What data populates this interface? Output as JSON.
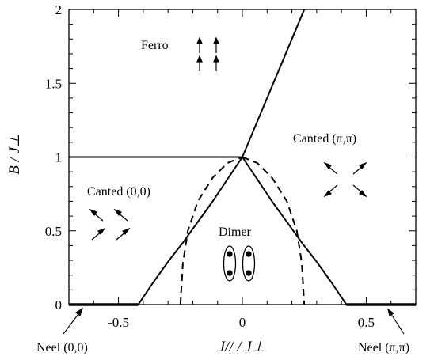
{
  "chart_data": {
    "type": "line",
    "title": "",
    "xlabel": "J// / J⊥",
    "ylabel": "B / J⊥",
    "xlim": [
      -0.7,
      0.7
    ],
    "ylim": [
      0,
      2
    ],
    "x_ticks": [
      "-0.5",
      "0",
      "0.5"
    ],
    "x_tick_values": [
      -0.5,
      0,
      0.5
    ],
    "y_ticks": [
      "0",
      "0.5",
      "1",
      "1.5",
      "2"
    ],
    "y_tick_values": [
      0,
      0.5,
      1,
      1.5,
      2
    ],
    "series": [
      {
        "style": "solid",
        "x": [
          -0.7,
          0.0
        ],
        "y": [
          1.0,
          1.0
        ]
      },
      {
        "style": "solid",
        "x": [
          0.0,
          0.25
        ],
        "y": [
          1.0,
          2.0
        ]
      },
      {
        "style": "solid",
        "x": [
          -0.42,
          -0.36,
          -0.3,
          -0.24,
          -0.18,
          -0.12,
          -0.06,
          0.0
        ],
        "y": [
          0.0,
          0.15,
          0.29,
          0.42,
          0.56,
          0.7,
          0.85,
          1.0
        ]
      },
      {
        "style": "solid",
        "x": [
          0.0,
          0.06,
          0.12,
          0.18,
          0.24,
          0.3,
          0.36,
          0.42
        ],
        "y": [
          1.0,
          0.85,
          0.7,
          0.56,
          0.42,
          0.29,
          0.15,
          0.0
        ]
      },
      {
        "style": "dashed",
        "x": [
          -0.25,
          -0.24,
          -0.22,
          -0.18,
          -0.12,
          -0.06,
          0.0
        ],
        "y": [
          0.0,
          0.28,
          0.5,
          0.7,
          0.86,
          0.96,
          1.0
        ]
      },
      {
        "style": "dashed",
        "x": [
          0.0,
          0.06,
          0.12,
          0.18,
          0.22,
          0.24,
          0.25
        ],
        "y": [
          1.0,
          0.96,
          0.86,
          0.7,
          0.5,
          0.28,
          0.0
        ]
      },
      {
        "style": "thick",
        "x": [
          -0.7,
          -0.42
        ],
        "y": [
          0.0,
          0.0
        ]
      },
      {
        "style": "thick",
        "x": [
          0.42,
          0.7
        ],
        "y": [
          0.0,
          0.0
        ]
      }
    ],
    "regions": {
      "ferro": "Ferro",
      "canted_pipi": "Canted (π,π)",
      "canted_00": "Canted (0,0)",
      "dimer": "Dimer"
    },
    "annotations": {
      "neel_00": "Neel (0,0)",
      "neel_pipi": "Neel (π,π)"
    },
    "grid": false,
    "legend": "none"
  }
}
